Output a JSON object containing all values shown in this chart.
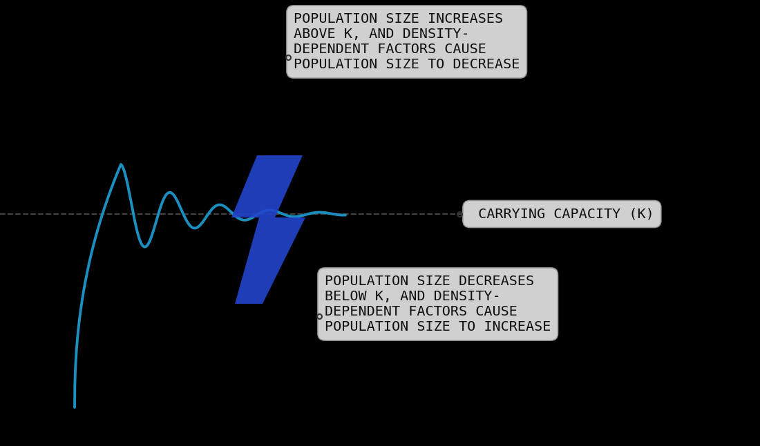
{
  "background_color": "#000000",
  "curve_color": "#1B8FBF",
  "k_line_color": "#555555",
  "lightning_color": "#2244CC",
  "text_box_facecolor": "#dcdcdc",
  "text_box_edgecolor": "#999999",
  "text_color": "#111111",
  "carrying_capacity_label": " CARRYING CAPACITY (K)",
  "upper_box_text": "POPULATION SIZE INCREASES\nABOVE K, AND DENSITY-\nDEPENDENT FACTORS CAUSE\nPOPULATION SIZE TO DECREASE",
  "lower_box_text": "POPULATION SIZE DECREASES\nBELOW K, AND DENSITY-\nDEPENDENT FACTORS CAUSE\nPOPULATION SIZE TO INCREASE",
  "font_family": "monospace",
  "font_size": 14.5
}
